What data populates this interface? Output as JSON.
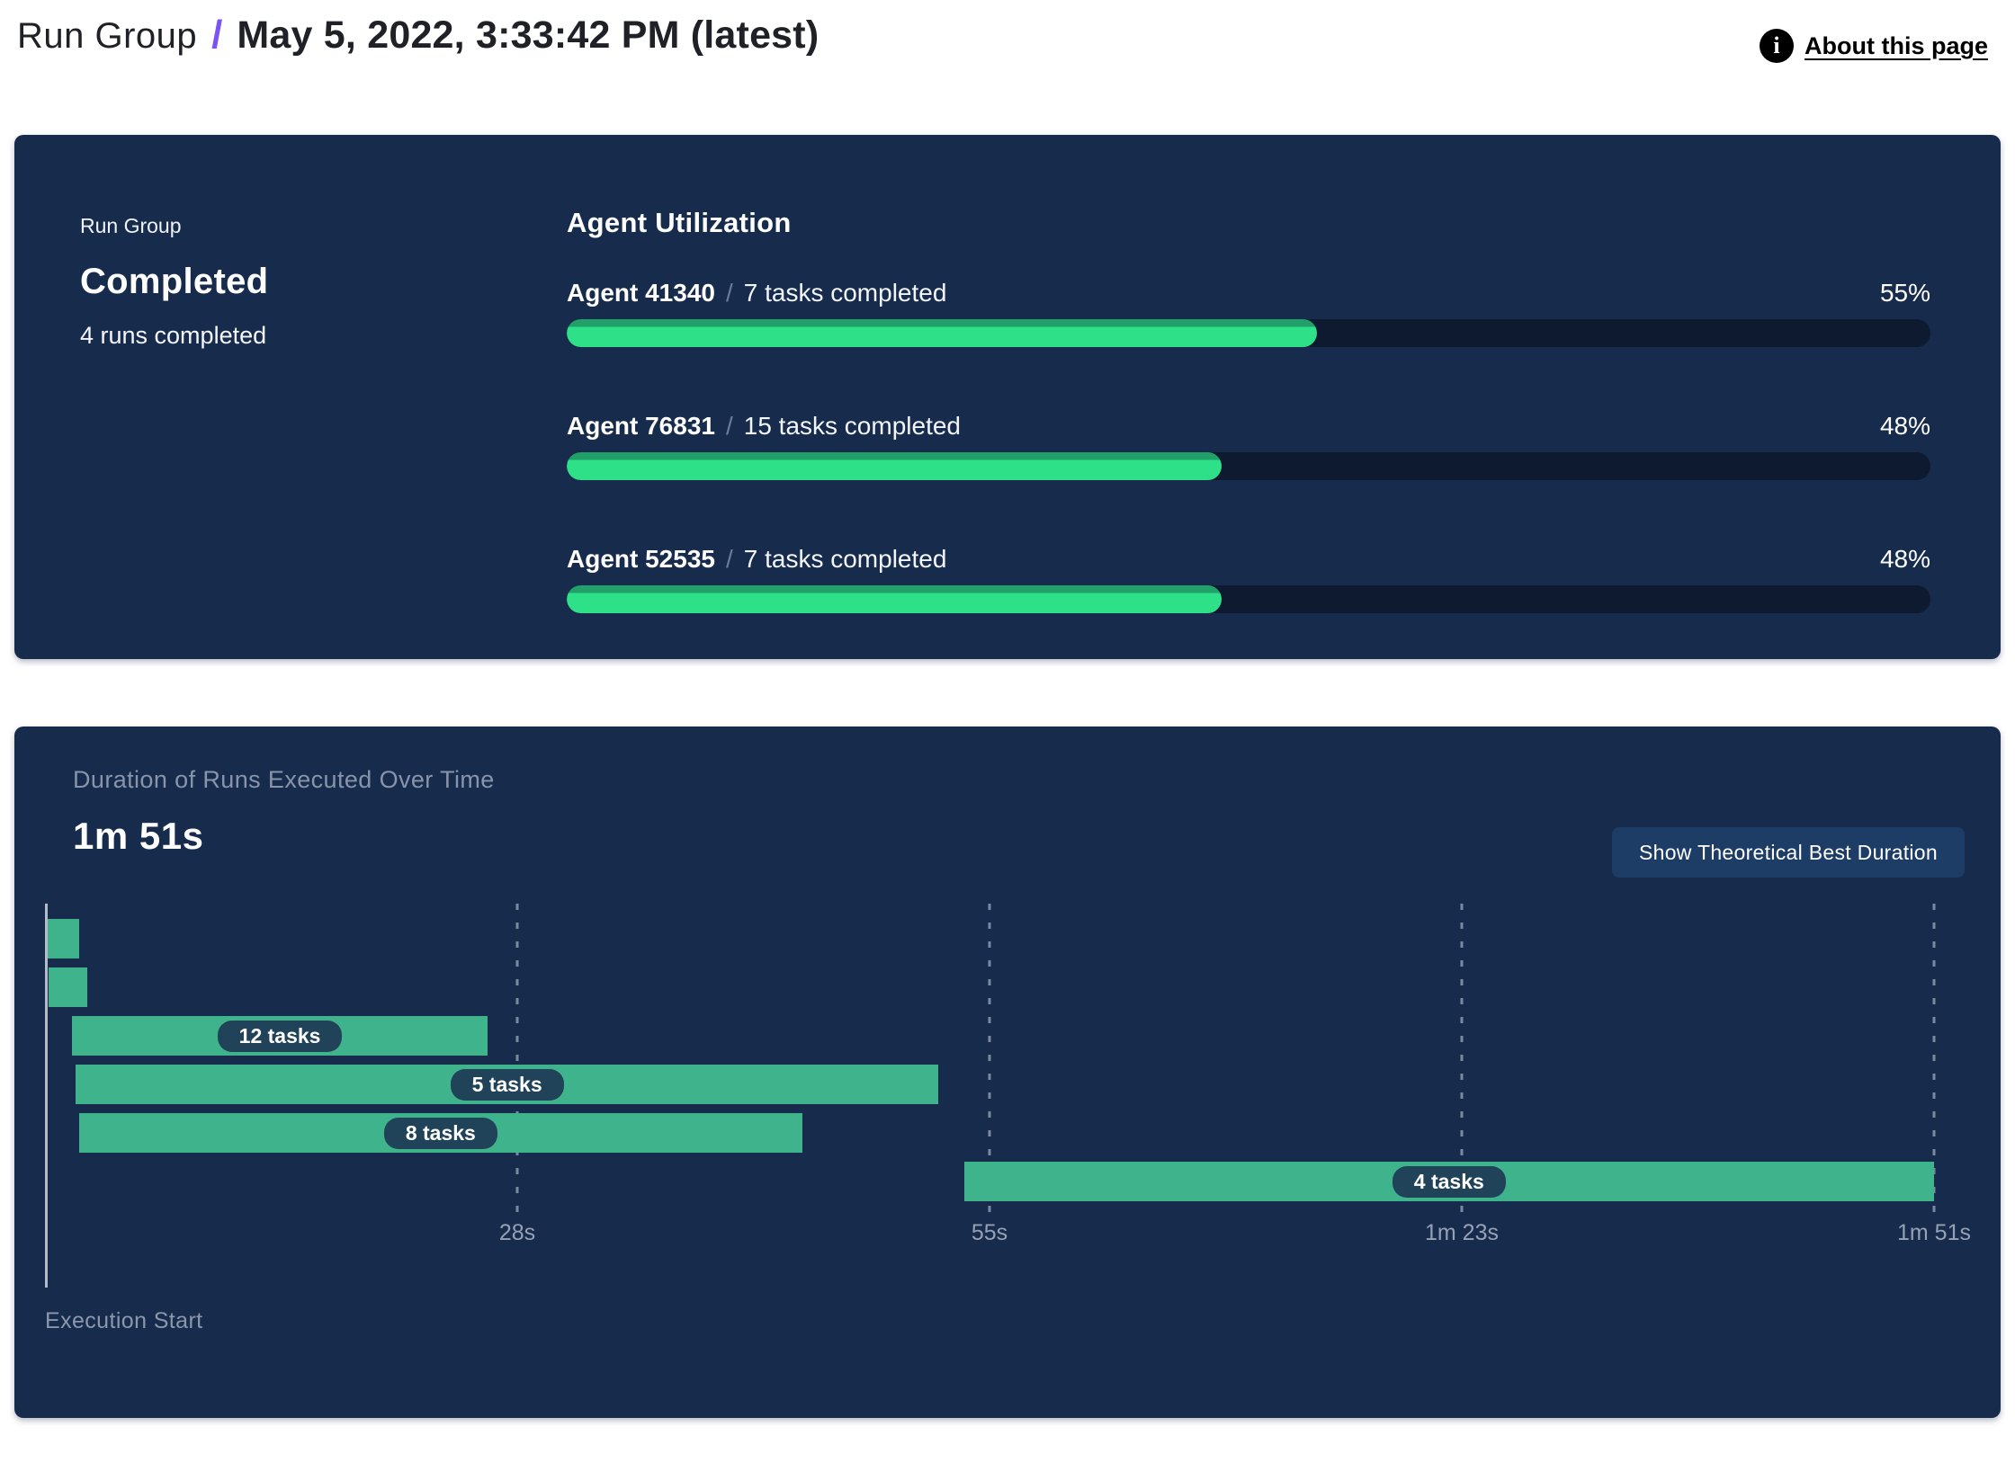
{
  "colors": {
    "accent_purple": "#7b52f4",
    "panel_navy": "#172b4c",
    "track_navy": "#0d1a30",
    "utilization_green": "#2ee087",
    "utilization_green_dark": "#21a169",
    "gantt_green": "#3fb38b",
    "pill_navy": "#20435a",
    "button_navy": "#1d3c66"
  },
  "header": {
    "breadcrumb": "Run Group",
    "separator": "/",
    "title": "May 5, 2022, 3:33:42 PM (latest)",
    "about_link": "About this page",
    "info_icon_glyph": "i"
  },
  "summary_panel": {
    "eyebrow": "Run Group",
    "status": "Completed",
    "runs_completed": "4 runs completed",
    "utilization_title": "Agent Utilization",
    "agents": [
      {
        "name": "Agent 41340",
        "separator": "/",
        "tasks": "7 tasks completed",
        "percent_label": "55%",
        "percent": 55
      },
      {
        "name": "Agent 76831",
        "separator": "/",
        "tasks": "15 tasks completed",
        "percent_label": "48%",
        "percent": 48
      },
      {
        "name": "Agent 52535",
        "separator": "/",
        "tasks": "7 tasks completed",
        "percent_label": "48%",
        "percent": 48
      }
    ]
  },
  "duration_panel": {
    "title": "Duration of Runs Executed Over Time",
    "total_duration": "1m 51s",
    "button_label": "Show Theoretical Best Duration",
    "execution_start_label": "Execution Start"
  },
  "chart_data": {
    "type": "gantt",
    "title": "Duration of Runs Executed Over Time",
    "total_label": "1m 51s",
    "total_seconds": 111,
    "x_axis_range_seconds": [
      0,
      111
    ],
    "grid": true,
    "x_ticks": [
      {
        "label": "28s",
        "percent": 25
      },
      {
        "label": "55s",
        "percent": 50
      },
      {
        "label": "1m 23s",
        "percent": 75
      },
      {
        "label": "1m 51s",
        "percent": 100
      }
    ],
    "runs": [
      {
        "start_s": 0.0,
        "end_s": 2.0,
        "label": ""
      },
      {
        "start_s": 0.2,
        "end_s": 2.5,
        "label": ""
      },
      {
        "start_s": 1.6,
        "end_s": 26.0,
        "label": "12 tasks"
      },
      {
        "start_s": 1.8,
        "end_s": 52.5,
        "label": "5 tasks"
      },
      {
        "start_s": 2.0,
        "end_s": 44.5,
        "label": "8 tasks"
      },
      {
        "start_s": 54.0,
        "end_s": 111.0,
        "label": "4 tasks"
      }
    ]
  }
}
